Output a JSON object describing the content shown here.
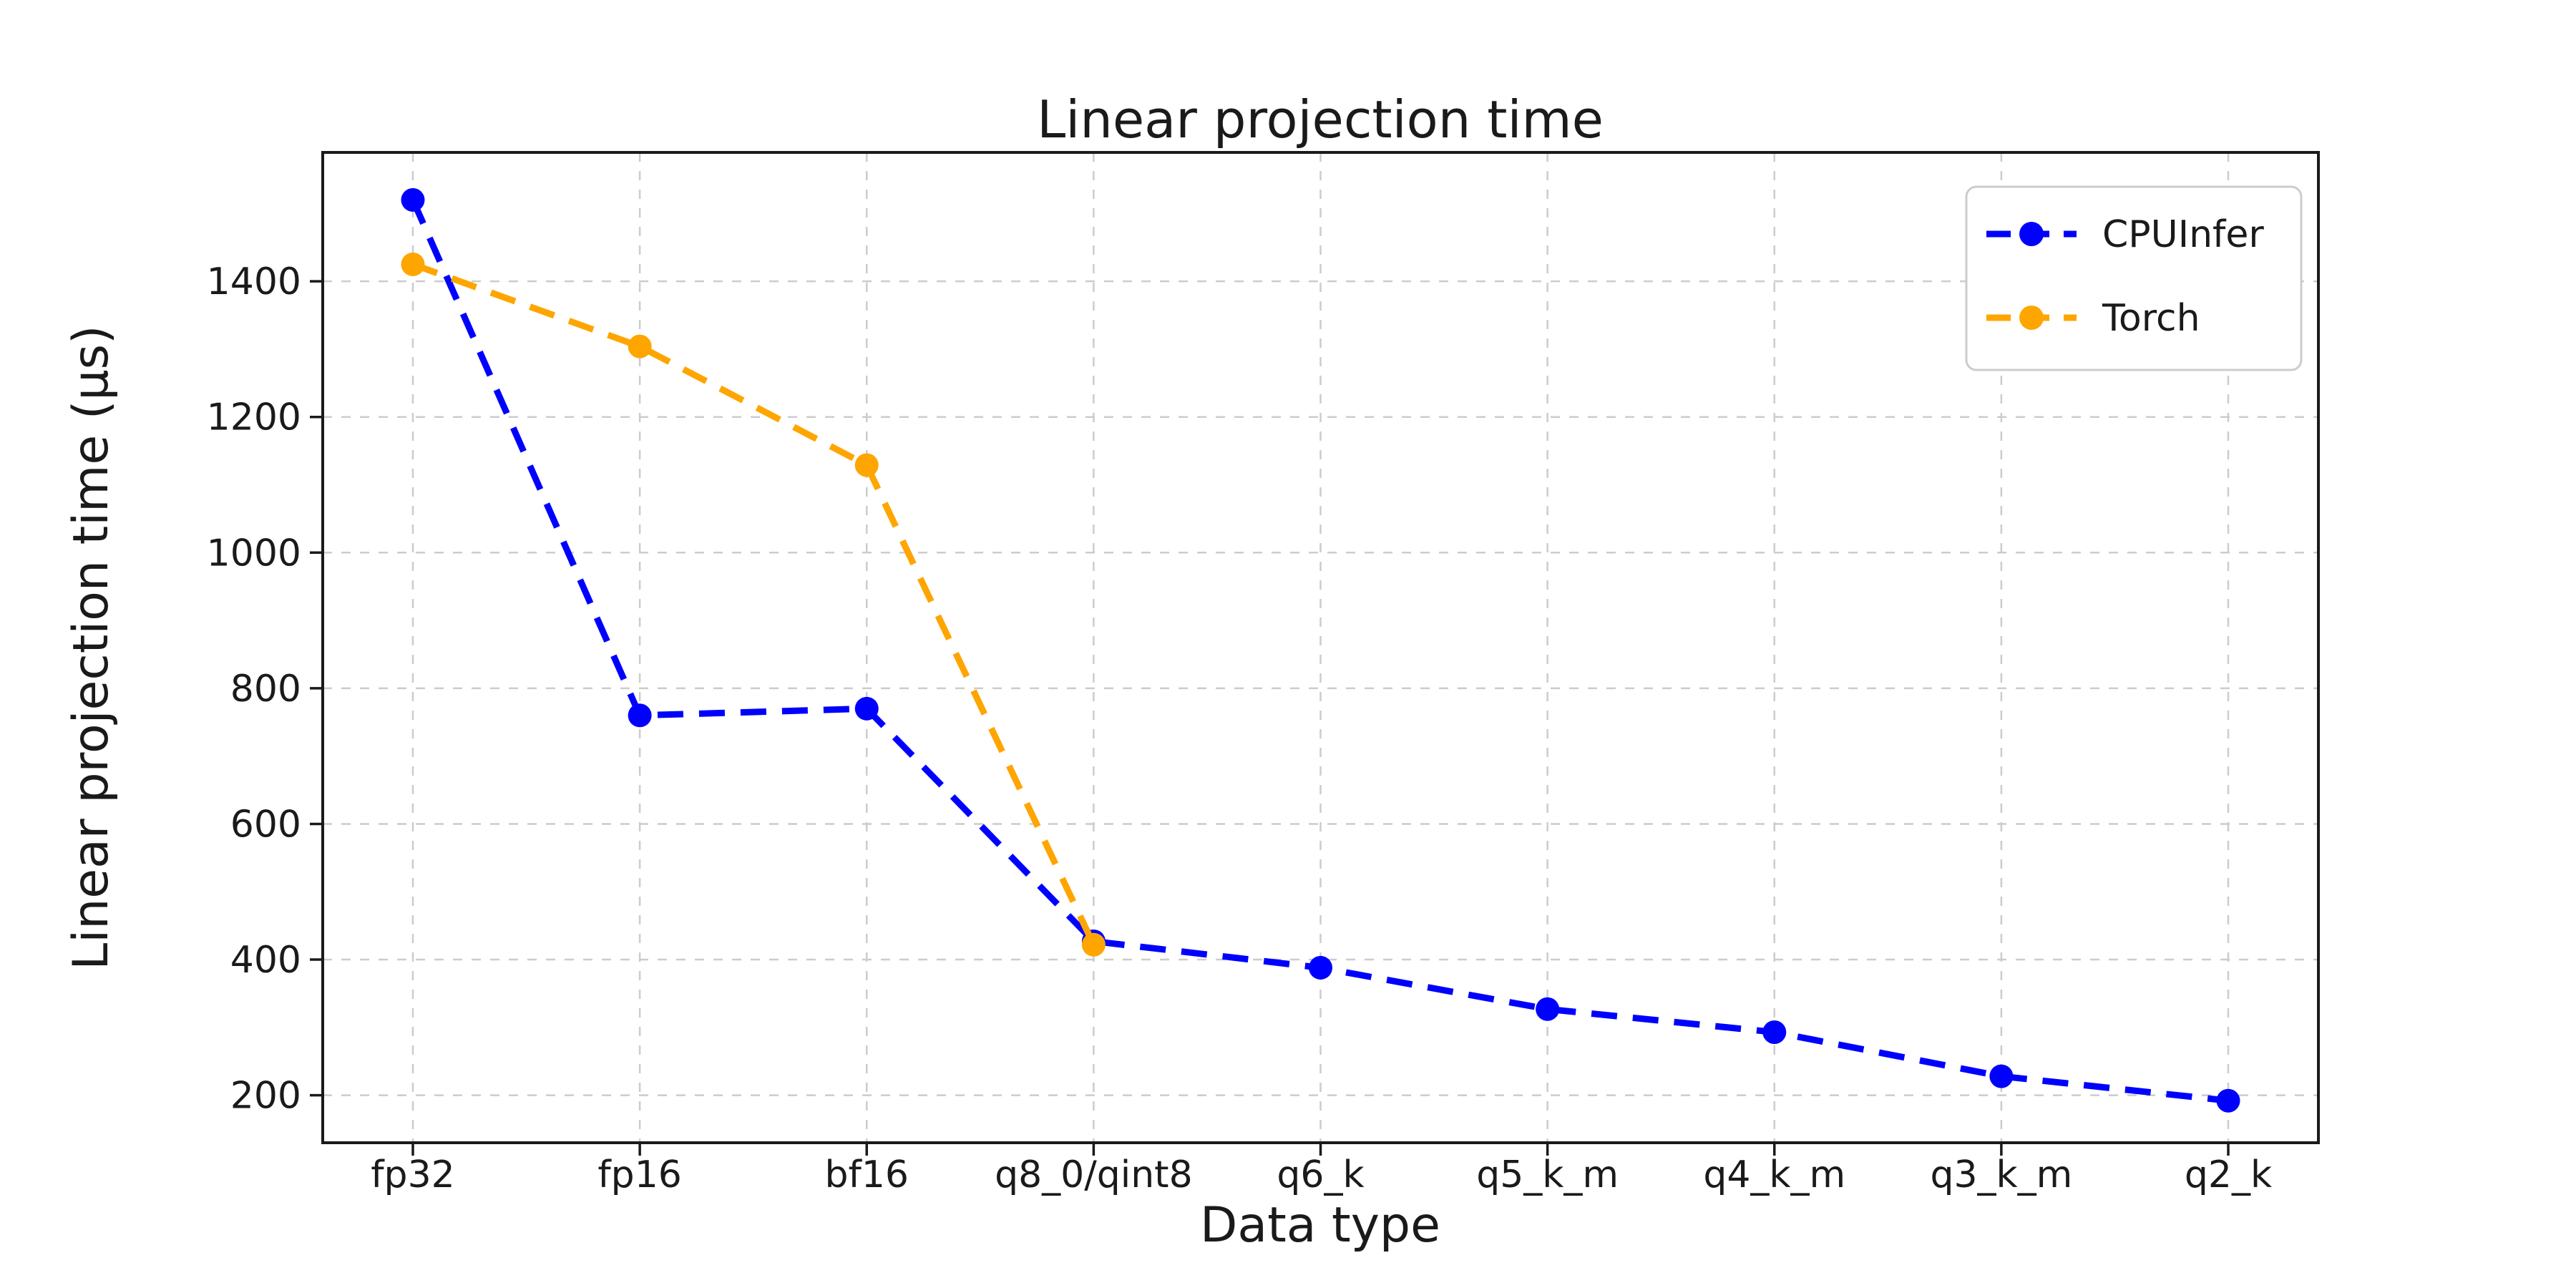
{
  "chart_data": {
    "type": "line",
    "title": "Linear projection time",
    "xlabel": "Data type",
    "ylabel": "Linear projection time (μs)",
    "categories": [
      "fp32",
      "fp16",
      "bf16",
      "q8_0/qint8",
      "q6_k",
      "q5_k_m",
      "q4_k_m",
      "q3_k_m",
      "q2_k"
    ],
    "series": [
      {
        "name": "CPUInfer",
        "color": "#0000ff",
        "line_style": "dashed",
        "marker": "circle",
        "values": [
          1520,
          760,
          770,
          427,
          388,
          327,
          293,
          228,
          192
        ]
      },
      {
        "name": "Torch",
        "color": "#ffa500",
        "line_style": "dashed",
        "marker": "circle",
        "values": [
          1425,
          1304,
          1129,
          422
        ]
      }
    ],
    "yticks": [
      200,
      400,
      600,
      800,
      1000,
      1200,
      1400
    ],
    "ylim": [
      130,
      1590
    ],
    "grid": true,
    "grid_color": "#cccccc",
    "spine_color": "#1a1a1a",
    "legend_position": "upper right",
    "background": "#ffffff",
    "text_color": "#1a1a1a"
  }
}
